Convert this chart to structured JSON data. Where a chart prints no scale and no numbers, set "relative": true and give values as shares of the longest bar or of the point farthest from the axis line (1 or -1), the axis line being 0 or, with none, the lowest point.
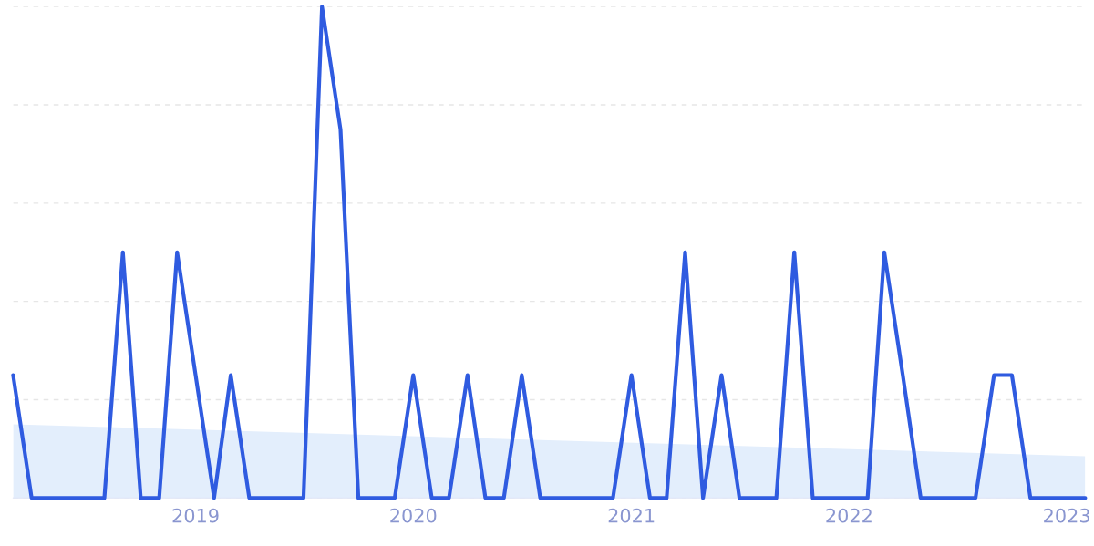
{
  "chart_data": {
    "type": "line",
    "relative": true,
    "grid": "y",
    "line_style": "solid",
    "marker": "none",
    "x": [
      "2018-03",
      "2018-04",
      "2018-05",
      "2018-06",
      "2018-07",
      "2018-08",
      "2018-09",
      "2018-10",
      "2018-11",
      "2018-12",
      "2019-01",
      "2019-02",
      "2019-03",
      "2019-04",
      "2019-05",
      "2019-06",
      "2019-07",
      "2019-08",
      "2019-09",
      "2019-10",
      "2019-11",
      "2019-12",
      "2020-01",
      "2020-02",
      "2020-03",
      "2020-04",
      "2020-05",
      "2020-06",
      "2020-07",
      "2020-08",
      "2020-09",
      "2020-10",
      "2020-11",
      "2020-12",
      "2021-01",
      "2021-02",
      "2021-03",
      "2021-04",
      "2021-05",
      "2021-06",
      "2021-07",
      "2021-08",
      "2021-09",
      "2021-10",
      "2021-11",
      "2021-12",
      "2022-01",
      "2022-02",
      "2022-03",
      "2022-04",
      "2022-05",
      "2022-06",
      "2022-07",
      "2022-08",
      "2022-09",
      "2022-10",
      "2022-11",
      "2022-12",
      "2023-01",
      "2023-02"
    ],
    "xlim": [
      "2018-03",
      "2023-02"
    ],
    "xticks": [
      "2019",
      "2020",
      "2021",
      "2022",
      "2023"
    ],
    "series": [
      {
        "type": "area",
        "color": "#e3eefc",
        "x": [
          "2018-03",
          "2023-02"
        ],
        "values": [
          0.15,
          0.085
        ]
      },
      {
        "color": "#2f5be0",
        "values": [
          0.25,
          0,
          0,
          0,
          0,
          0,
          0.5,
          0,
          0,
          0.5,
          0.25,
          0,
          0.25,
          0,
          0,
          0,
          0,
          1.0,
          0.75,
          0,
          0,
          0,
          0.25,
          0,
          0,
          0.25,
          0,
          0,
          0.25,
          0,
          0,
          0,
          0,
          0,
          0.25,
          0,
          0,
          0.5,
          0,
          0.25,
          0,
          0,
          0,
          0.5,
          0,
          0,
          0,
          0,
          0.5,
          0.25,
          0,
          0,
          0,
          0,
          0.25,
          0.25,
          0,
          0,
          0,
          0
        ]
      }
    ]
  }
}
